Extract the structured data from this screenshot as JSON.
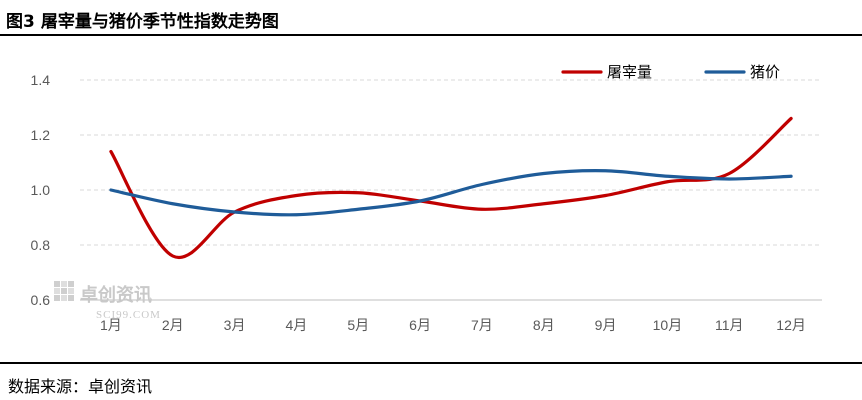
{
  "header": {
    "figure_label": "图3",
    "title": "屠宰量与猪价季节性指数走势图"
  },
  "footer": {
    "source": "数据来源：卓创资讯"
  },
  "watermark": {
    "name": "卓创资讯",
    "url": "SCI99.COM"
  },
  "chart_data": {
    "type": "line",
    "categories": [
      "1月",
      "2月",
      "3月",
      "4月",
      "5月",
      "6月",
      "7月",
      "8月",
      "9月",
      "10月",
      "11月",
      "12月"
    ],
    "series": [
      {
        "name": "屠宰量",
        "color": "#c00000",
        "values": [
          1.14,
          0.76,
          0.92,
          0.98,
          0.99,
          0.96,
          0.93,
          0.95,
          0.98,
          1.03,
          1.06,
          1.26
        ]
      },
      {
        "name": "猪价",
        "color": "#1f5c99",
        "values": [
          1.0,
          0.95,
          0.92,
          0.91,
          0.93,
          0.96,
          1.02,
          1.06,
          1.07,
          1.05,
          1.04,
          1.05
        ]
      }
    ],
    "ylim": [
      0.6,
      1.4
    ],
    "yticks": [
      "0.6",
      "0.8",
      "1.0",
      "1.2",
      "1.4"
    ],
    "grid": true,
    "legend": "top-right"
  }
}
